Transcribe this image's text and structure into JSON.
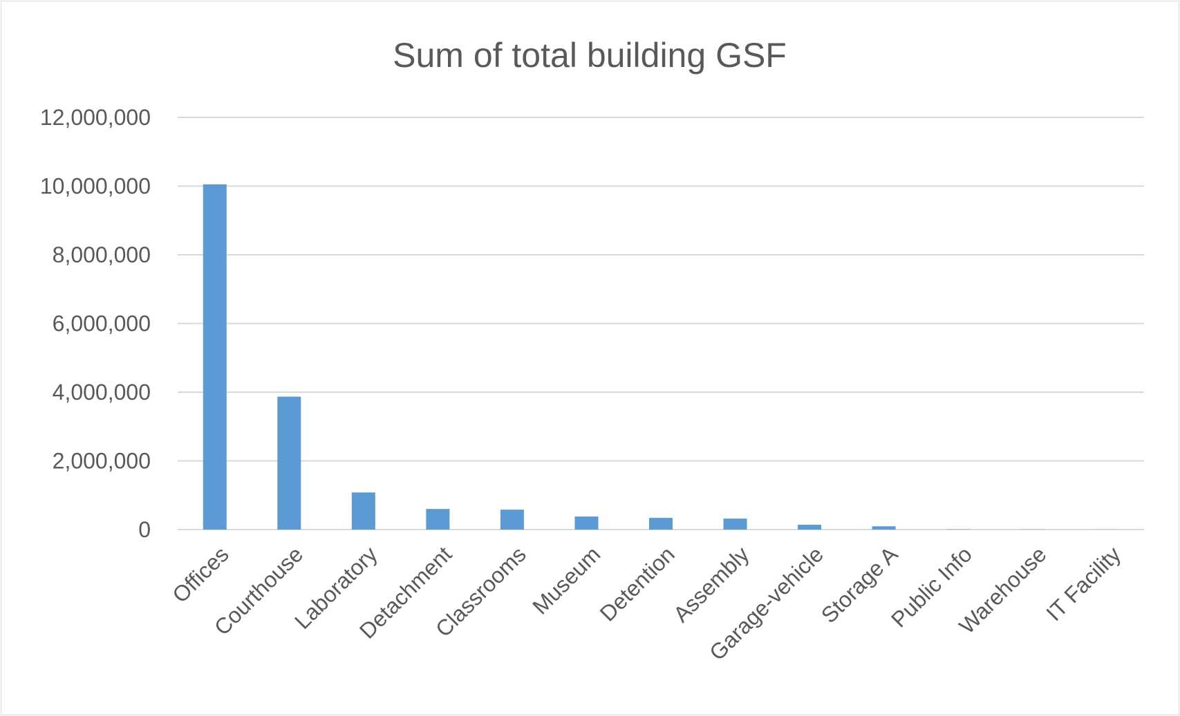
{
  "chart_data": {
    "type": "bar",
    "title": "Sum of total building GSF",
    "xlabel": "",
    "ylabel": "",
    "categories": [
      "Offices",
      "Courthouse",
      "Laboratory",
      "Detachment",
      "Classrooms",
      "Museum",
      "Detention",
      "Assembly",
      "Garage-vehicle",
      "Storage A",
      "Public Info",
      "Warehouse",
      "IT Facility"
    ],
    "values": [
      10050000,
      3870000,
      1080000,
      600000,
      580000,
      380000,
      340000,
      320000,
      140000,
      95000,
      8000,
      5000,
      3000
    ],
    "ylim": [
      0,
      12000000
    ],
    "yticks": [
      "0",
      "2,000,000",
      "4,000,000",
      "6,000,000",
      "8,000,000",
      "10,000,000",
      "12,000,000"
    ],
    "grid": true,
    "legend": "none",
    "colors": {
      "bar": "#5b9bd5",
      "grid": "#d9d9d9",
      "text": "#595959"
    }
  }
}
